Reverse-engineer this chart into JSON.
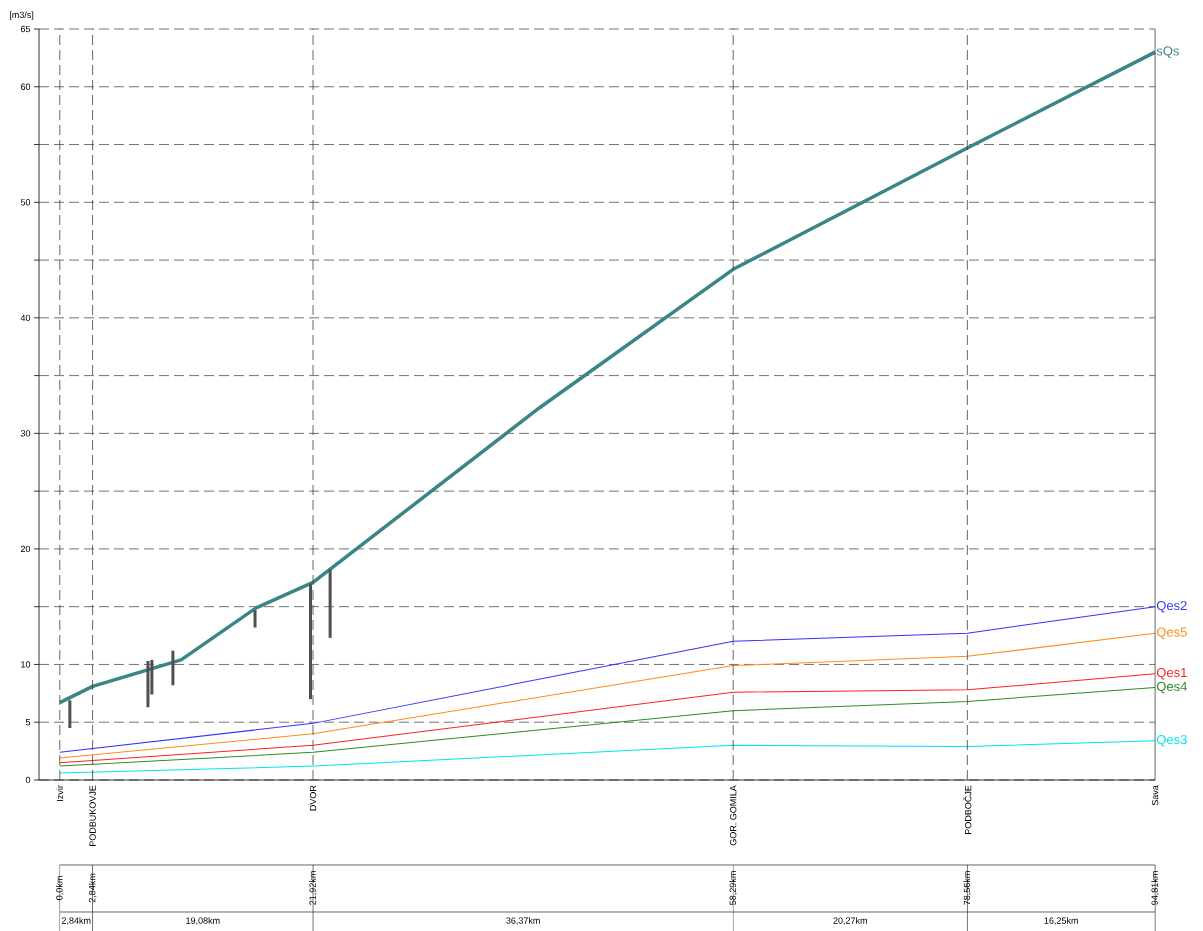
{
  "chart_data": {
    "type": "line",
    "ylabel": "[m3/s]",
    "xlim": [
      -1.8,
      94.81
    ],
    "ylim": [
      0,
      65
    ],
    "yticks": [
      0,
      5,
      10,
      {
        "value": 15,
        "label": null
      },
      20,
      {
        "value": 25,
        "label": null
      },
      30,
      {
        "value": 35,
        "label": null
      },
      40,
      {
        "value": 45,
        "label": null
      },
      50,
      {
        "value": 55,
        "label": null
      },
      60,
      65
    ],
    "xticks": [
      {
        "value": 0,
        "label": "0,0km"
      },
      {
        "value": 2.84,
        "label": "2,84km"
      },
      {
        "value": 21.92,
        "label": "21,92km"
      },
      {
        "value": 58.29,
        "label": "58,29km"
      },
      {
        "value": 78.56,
        "label": "78,56km"
      },
      {
        "value": 94.81,
        "label": "94,81km"
      }
    ],
    "grid": "y",
    "series": [
      {
        "name": "sQs",
        "color": "#3a8585",
        "x": [
          0,
          2.84,
          10.5,
          17,
          21.92,
          41.5,
          58.29,
          78.56,
          94.81
        ],
        "values": [
          6.7,
          8.1,
          10.4,
          14.9,
          17.1,
          32.2,
          44.2,
          54.7,
          63.0
        ]
      },
      {
        "name": "Qes2",
        "color": "#3333ff",
        "x": [
          0,
          21.92,
          58.29,
          78.56,
          94.81
        ],
        "values": [
          2.4,
          4.9,
          12.0,
          12.7,
          15.0
        ]
      },
      {
        "name": "Qes5",
        "color": "#ff8c1a",
        "x": [
          0,
          21.92,
          58.29,
          78.56,
          94.81
        ],
        "values": [
          1.9,
          4.0,
          9.9,
          10.7,
          12.7
        ]
      },
      {
        "name": "Qes1",
        "color": "#ff2020",
        "x": [
          0,
          21.92,
          58.29,
          78.56,
          94.81
        ],
        "values": [
          1.5,
          3.0,
          7.6,
          7.8,
          9.2
        ]
      },
      {
        "name": "Qes4",
        "color": "#2e8b22",
        "x": [
          0,
          21.92,
          58.29,
          78.56,
          94.81
        ],
        "values": [
          1.2,
          2.4,
          6.0,
          6.8,
          8.0
        ]
      },
      {
        "name": "Qes3",
        "color": "#00e5ee",
        "x": [
          0,
          21.92,
          58.29,
          78.56,
          94.81
        ],
        "values": [
          0.6,
          1.2,
          3.0,
          2.9,
          3.4
        ]
      },
      {
        "type": "bar",
        "color": "#505050",
        "x": [
          0.87,
          7.63,
          7.97,
          9.79,
          16.9,
          21.7,
          23.4
        ],
        "base": [
          4.5,
          6.3,
          7.4,
          8.2,
          13.2,
          7.0,
          12.3
        ],
        "values": [
          2.4,
          4.0,
          3.0,
          3.0,
          1.5,
          10.0,
          5.9
        ]
      }
    ],
    "ref_lines": [
      {
        "axis": "x",
        "value": 0,
        "label": "Izvir",
        "line_style": "dashed"
      },
      {
        "axis": "x",
        "value": 2.84,
        "label": "PODBUKOVJE",
        "line_style": "dashed"
      },
      {
        "axis": "x",
        "value": 21.92,
        "label": "DVOR",
        "line_style": "dashed"
      },
      {
        "axis": "x",
        "value": 58.29,
        "label": "GOR. GOMILA",
        "line_style": "dashed"
      },
      {
        "axis": "x",
        "value": 78.56,
        "label": "PODBOČJE",
        "line_style": "dashed"
      },
      {
        "axis": "x",
        "value": 94.81,
        "label": "Sava",
        "line_style": "solid"
      }
    ],
    "annotations": [
      "2,84km",
      "19,08km",
      "36,37km",
      "20,27km",
      "16,25km"
    ]
  }
}
